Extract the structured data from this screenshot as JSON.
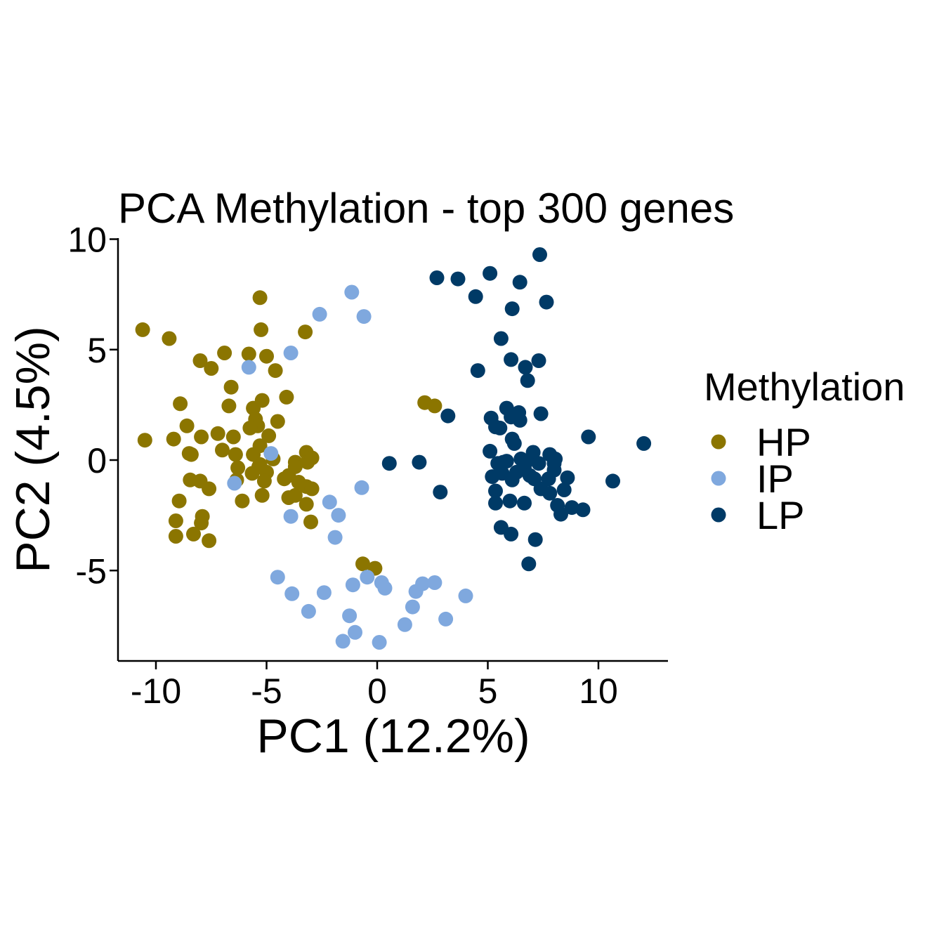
{
  "chart_data": {
    "type": "scatter",
    "title": "PCA Methylation - top 300 genes",
    "xlabel": "PC1 (12.2%)",
    "ylabel": "PC2 (4.5%)",
    "xlim": [
      -11.8,
      13
    ],
    "ylim": [
      -9.2,
      10
    ],
    "x_ticks": [
      -10,
      -5,
      0,
      5,
      10
    ],
    "x_tick_labels": [
      "-10",
      "-5",
      "0",
      "5",
      "10"
    ],
    "y_ticks": [
      -5,
      0,
      5,
      10
    ],
    "y_tick_labels": [
      "-5",
      "0",
      "5",
      "10"
    ],
    "grid": false,
    "legend": {
      "title": "Methylation",
      "position": "right"
    },
    "series": [
      {
        "name": "HP",
        "color": "#8B7500",
        "points": [
          [
            -10.6,
            5.9
          ],
          [
            -9.4,
            5.5
          ],
          [
            -10.5,
            0.9
          ],
          [
            -9.2,
            0.95
          ],
          [
            -8.9,
            2.55
          ],
          [
            -8.6,
            1.55
          ],
          [
            -8.5,
            0.3
          ],
          [
            -8.4,
            0.25
          ],
          [
            -8.45,
            -0.9
          ],
          [
            -8.95,
            -1.85
          ],
          [
            -9.1,
            -2.75
          ],
          [
            -9.1,
            -3.45
          ],
          [
            -8.0,
            4.5
          ],
          [
            -7.5,
            4.15
          ],
          [
            -6.9,
            4.85
          ],
          [
            -7.95,
            1.05
          ],
          [
            -7.2,
            1.2
          ],
          [
            -7.0,
            0.45
          ],
          [
            -8.0,
            -0.95
          ],
          [
            -7.6,
            -1.3
          ],
          [
            -7.9,
            -2.55
          ],
          [
            -7.95,
            -2.85
          ],
          [
            -8.3,
            -3.35
          ],
          [
            -7.6,
            -3.65
          ],
          [
            -6.6,
            3.3
          ],
          [
            -6.7,
            2.45
          ],
          [
            -6.5,
            1.05
          ],
          [
            -6.4,
            0.25
          ],
          [
            -6.3,
            -0.35
          ],
          [
            -6.35,
            -0.9
          ],
          [
            -6.1,
            -1.85
          ],
          [
            -5.8,
            4.8
          ],
          [
            -5.6,
            2.35
          ],
          [
            -5.6,
            0.25
          ],
          [
            -5.5,
            1.85
          ],
          [
            -5.4,
            1.55
          ],
          [
            -5.75,
            1.45
          ],
          [
            -5.3,
            0.65
          ],
          [
            -5.2,
            2.7
          ],
          [
            -5.3,
            -0.2
          ],
          [
            -5.35,
            -0.3
          ],
          [
            -5.65,
            -0.6
          ],
          [
            -5.0,
            -0.55
          ],
          [
            -5.1,
            -0.95
          ],
          [
            -5.2,
            -1.6
          ],
          [
            -5.3,
            7.35
          ],
          [
            -5.25,
            5.9
          ],
          [
            -5.0,
            4.7
          ],
          [
            -4.6,
            4.05
          ],
          [
            -4.9,
            1.1
          ],
          [
            -4.7,
            0.05
          ],
          [
            -4.5,
            1.75
          ],
          [
            -4.1,
            2.85
          ],
          [
            -4.0,
            -0.7
          ],
          [
            -4.2,
            -0.85
          ],
          [
            -4.0,
            -1.7
          ],
          [
            -3.7,
            -1.6
          ],
          [
            -3.7,
            -0.1
          ],
          [
            -3.7,
            -0.3
          ],
          [
            -3.55,
            -1.0
          ],
          [
            -3.2,
            0.35
          ],
          [
            -3.15,
            -0.1
          ],
          [
            -2.95,
            0.1
          ],
          [
            -3.2,
            -1.2
          ],
          [
            -2.95,
            -1.3
          ],
          [
            -3.2,
            -2.0
          ],
          [
            -3.0,
            -2.8
          ],
          [
            -3.25,
            5.8
          ],
          [
            -0.65,
            -4.7
          ],
          [
            -0.1,
            -4.9
          ],
          [
            2.15,
            2.6
          ],
          [
            2.6,
            2.45
          ]
        ]
      },
      {
        "name": "IP",
        "color": "#7FA8DE",
        "points": [
          [
            -1.15,
            7.6
          ],
          [
            -0.6,
            6.5
          ],
          [
            -2.6,
            6.6
          ],
          [
            -3.9,
            4.85
          ],
          [
            -5.8,
            4.2
          ],
          [
            -4.8,
            0.3
          ],
          [
            -6.45,
            -1.05
          ],
          [
            -3.9,
            -2.55
          ],
          [
            -2.15,
            -1.9
          ],
          [
            -1.75,
            -2.5
          ],
          [
            -1.9,
            -3.5
          ],
          [
            -0.7,
            -1.25
          ],
          [
            -4.5,
            -5.3
          ],
          [
            -3.85,
            -6.05
          ],
          [
            -3.1,
            -6.85
          ],
          [
            -2.4,
            -6.0
          ],
          [
            -1.55,
            -8.2
          ],
          [
            -1.25,
            -7.05
          ],
          [
            -1.0,
            -7.8
          ],
          [
            -1.1,
            -5.65
          ],
          [
            -0.45,
            -5.3
          ],
          [
            0.2,
            -5.55
          ],
          [
            0.35,
            -5.8
          ],
          [
            0.1,
            -8.25
          ],
          [
            1.25,
            -7.45
          ],
          [
            1.6,
            -6.65
          ],
          [
            1.75,
            -5.95
          ],
          [
            2.05,
            -5.6
          ],
          [
            2.6,
            -5.55
          ],
          [
            3.1,
            -7.2
          ],
          [
            4.0,
            -6.15
          ]
        ]
      },
      {
        "name": "LP",
        "color": "#003A66",
        "points": [
          [
            7.35,
            9.3
          ],
          [
            5.1,
            8.45
          ],
          [
            2.7,
            8.25
          ],
          [
            3.65,
            8.2
          ],
          [
            6.45,
            8.05
          ],
          [
            4.45,
            7.4
          ],
          [
            7.65,
            7.15
          ],
          [
            6.1,
            6.85
          ],
          [
            5.6,
            5.5
          ],
          [
            6.05,
            4.55
          ],
          [
            7.3,
            4.5
          ],
          [
            4.55,
            4.05
          ],
          [
            6.7,
            4.2
          ],
          [
            6.8,
            3.6
          ],
          [
            5.85,
            2.35
          ],
          [
            6.4,
            2.15
          ],
          [
            5.15,
            1.9
          ],
          [
            5.35,
            1.5
          ],
          [
            5.55,
            1.45
          ],
          [
            6.05,
            1.95
          ],
          [
            6.45,
            1.8
          ],
          [
            7.4,
            2.1
          ],
          [
            3.2,
            2.0
          ],
          [
            5.1,
            0.4
          ],
          [
            6.1,
            0.95
          ],
          [
            6.2,
            0.75
          ],
          [
            5.45,
            -0.15
          ],
          [
            5.7,
            -0.1
          ],
          [
            5.85,
            -0.05
          ],
          [
            6.5,
            0.05
          ],
          [
            6.75,
            -0.05
          ],
          [
            7.05,
            0.35
          ],
          [
            7.3,
            -0.15
          ],
          [
            7.8,
            0.25
          ],
          [
            8.0,
            -0.15
          ],
          [
            8.05,
            0.05
          ],
          [
            5.2,
            -0.75
          ],
          [
            5.35,
            -1.4
          ],
          [
            5.65,
            -0.6
          ],
          [
            6.1,
            -0.9
          ],
          [
            6.3,
            -0.55
          ],
          [
            6.65,
            -0.35
          ],
          [
            6.9,
            -0.7
          ],
          [
            7.1,
            -0.85
          ],
          [
            7.4,
            -1.3
          ],
          [
            7.75,
            -0.85
          ],
          [
            8.0,
            -0.45
          ],
          [
            8.6,
            -0.8
          ],
          [
            8.45,
            -1.35
          ],
          [
            5.35,
            -1.95
          ],
          [
            6.0,
            -1.85
          ],
          [
            6.65,
            -1.95
          ],
          [
            7.8,
            -1.5
          ],
          [
            8.15,
            -2.05
          ],
          [
            8.3,
            -2.45
          ],
          [
            8.8,
            -2.15
          ],
          [
            9.3,
            -2.25
          ],
          [
            5.6,
            -3.05
          ],
          [
            6.05,
            -3.35
          ],
          [
            7.15,
            -3.6
          ],
          [
            6.85,
            -4.7
          ],
          [
            0.55,
            -0.15
          ],
          [
            1.9,
            -0.1
          ],
          [
            2.85,
            -1.45
          ],
          [
            9.55,
            1.05
          ],
          [
            10.65,
            -0.95
          ],
          [
            12.05,
            0.75
          ]
        ]
      }
    ]
  }
}
